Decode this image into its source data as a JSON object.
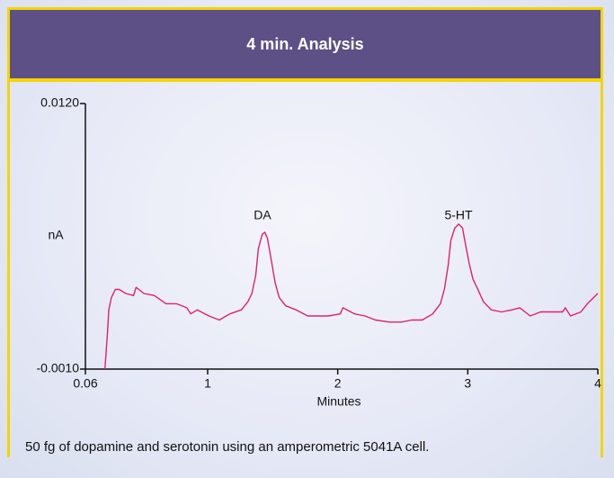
{
  "header": {
    "title": "4 min. Analysis"
  },
  "chart_data": {
    "type": "line",
    "color": "#e0206e",
    "y_label": "nA",
    "x_label": "Minutes",
    "annotations": [
      "DA",
      "5-HT"
    ],
    "x": [
      0.21,
      0.23,
      0.24,
      0.26,
      0.29,
      0.32,
      0.37,
      0.43,
      0.45,
      0.51,
      0.59,
      0.68,
      0.76,
      0.84,
      0.87,
      0.92,
      1.01,
      1.09,
      1.17,
      1.26,
      1.31,
      1.34,
      1.37,
      1.39,
      1.42,
      1.44,
      1.46,
      1.49,
      1.52,
      1.55,
      1.6,
      1.68,
      1.77,
      1.85,
      1.93,
      2.02,
      2.04,
      2.13,
      2.21,
      2.29,
      2.4,
      2.49,
      2.57,
      2.65,
      2.73,
      2.79,
      2.82,
      2.85,
      2.87,
      2.9,
      2.93,
      2.96,
      2.98,
      3.01,
      3.04,
      3.07,
      3.12,
      3.18,
      3.26,
      3.34,
      3.4,
      3.48,
      3.56,
      3.65,
      3.73,
      3.75,
      3.79,
      3.87,
      3.92,
      4.0
    ],
    "values": [
      -0.001,
      0.0008,
      0.0019,
      0.0025,
      0.0029,
      0.0029,
      0.0027,
      0.0026,
      0.003,
      0.0027,
      0.0026,
      0.0022,
      0.0022,
      0.002,
      0.0017,
      0.0019,
      0.0016,
      0.0014,
      0.0017,
      0.0019,
      0.0023,
      0.0027,
      0.0036,
      0.0049,
      0.0056,
      0.0057,
      0.0054,
      0.0043,
      0.0032,
      0.0025,
      0.0021,
      0.0019,
      0.0016,
      0.0016,
      0.0016,
      0.0017,
      0.002,
      0.0017,
      0.0016,
      0.0014,
      0.0013,
      0.0013,
      0.0014,
      0.0014,
      0.0017,
      0.0022,
      0.0029,
      0.0041,
      0.0053,
      0.0059,
      0.0061,
      0.0059,
      0.0052,
      0.0042,
      0.0034,
      0.003,
      0.0023,
      0.0019,
      0.0018,
      0.0019,
      0.002,
      0.0016,
      0.0018,
      0.0018,
      0.0018,
      0.002,
      0.0016,
      0.0018,
      0.0022,
      0.0027
    ],
    "xlim": [
      0.06,
      4
    ],
    "xticks": [
      0.06,
      1,
      2,
      3,
      4
    ],
    "ylim": [
      -0.001,
      0.012
    ],
    "yticks": [
      {
        "value": -0.001,
        "label": "-0.0010"
      },
      {
        "value": 0.012,
        "label": "0.0120"
      }
    ]
  },
  "caption": "50 fg of dopamine and serotonin using an amperometric 5041A cell."
}
